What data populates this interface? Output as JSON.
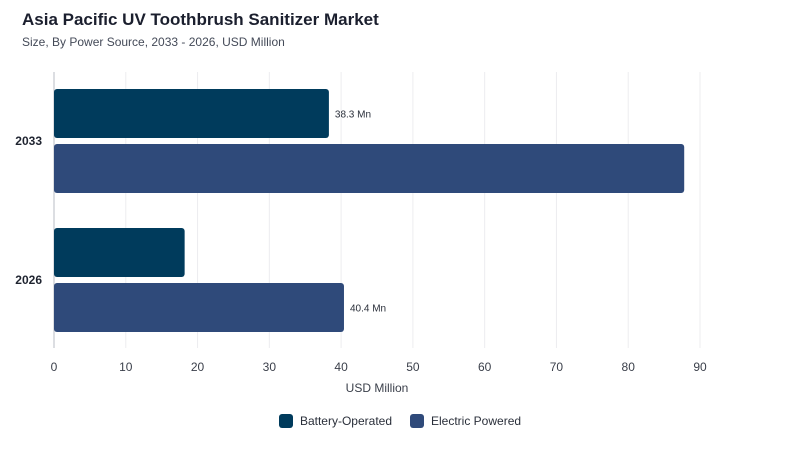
{
  "title": "Asia Pacific UV Toothbrush Sanitizer Market",
  "subtitle": "Size, By Power Source, 2033 - 2026, USD Million",
  "chart_data": {
    "type": "bar",
    "orientation": "horizontal",
    "categories": [
      "2033",
      "2026"
    ],
    "series": [
      {
        "name": "Battery-Operated",
        "color": "#003b5c",
        "values": [
          38.3,
          18.2
        ],
        "labels": [
          "38.3 Mn",
          ""
        ]
      },
      {
        "name": "Electric Powered",
        "color": "#2f4a7a",
        "values": [
          87.8,
          40.4
        ],
        "labels": [
          "",
          "40.4 Mn"
        ]
      }
    ],
    "xlabel": "USD Million",
    "xlim": [
      0,
      90
    ],
    "xticks": [
      0,
      10,
      20,
      30,
      40,
      50,
      60,
      70,
      80,
      90
    ],
    "grid": true,
    "legend_position": "bottom"
  }
}
